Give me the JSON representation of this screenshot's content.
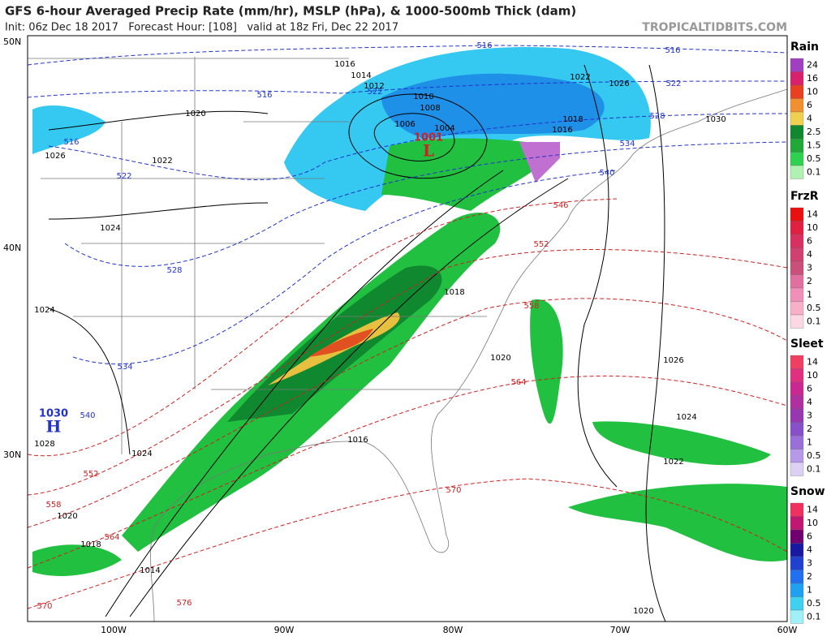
{
  "header": {
    "title": "GFS 6-hour Averaged Precip Rate (mm/hr), MSLP (hPa), & 1000-500mb Thick (dam)",
    "subtitle": "Init: 06z Dec 18 2017   Forecast Hour: [108]   valid at 18z Fri, Dec 22 2017",
    "site": "TROPICALTIDBITS.COM"
  },
  "lat_labels": [
    "50N",
    "40N",
    "30N"
  ],
  "lon_labels": [
    "100W",
    "90W",
    "80W",
    "70W",
    "60W"
  ],
  "legend": [
    {
      "title": "Rain",
      "levels": [
        "24",
        "16",
        "10",
        "6",
        "4",
        "2.5",
        "1.5",
        "0.5",
        "0.1"
      ]
    },
    {
      "title": "FrzR",
      "levels": [
        "14",
        "10",
        "6",
        "4",
        "3",
        "2",
        "1",
        "0.5",
        "0.1"
      ]
    },
    {
      "title": "Sleet",
      "levels": [
        "14",
        "10",
        "6",
        "4",
        "3",
        "2",
        "1",
        "0.5",
        "0.1"
      ]
    },
    {
      "title": "Snow",
      "levels": [
        "14",
        "10",
        "6",
        "4",
        "3",
        "2",
        "1",
        "0.5",
        "0.1"
      ]
    }
  ],
  "pressure_labels": [
    "1016",
    "1014",
    "1012",
    "1010",
    "1008",
    "1006",
    "1004",
    "1022",
    "1026",
    "1030",
    "1018",
    "1016",
    "1020",
    "1022",
    "1026",
    "1024",
    "1024",
    "1018",
    "1020",
    "1026",
    "1024",
    "1022",
    "1016",
    "1024",
    "1028",
    "1020",
    "1018",
    "1014",
    "1020"
  ],
  "thickness_labels_blue": [
    "516",
    "516",
    "522",
    "528",
    "534",
    "540",
    "516",
    "522",
    "516",
    "522",
    "528",
    "534",
    "540"
  ],
  "thickness_labels_red": [
    "546",
    "552",
    "558",
    "564",
    "570",
    "576",
    "570",
    "552",
    "558",
    "564"
  ],
  "centers": [
    {
      "value": "1001",
      "letter": "L"
    },
    {
      "value": "1030",
      "letter": "H"
    }
  ]
}
